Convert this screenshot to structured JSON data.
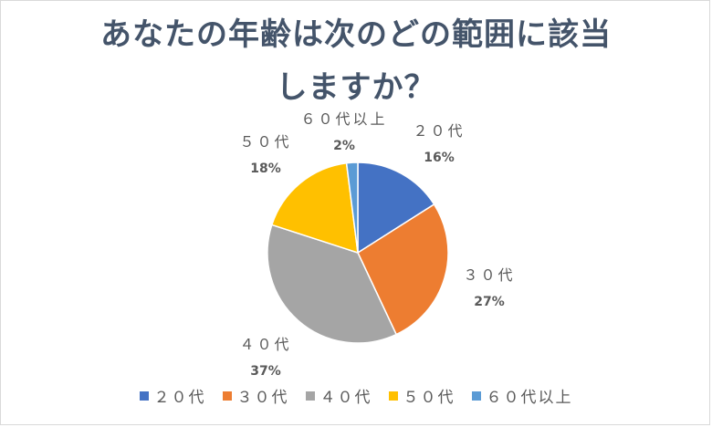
{
  "chart_data": {
    "type": "pie",
    "title_lines": [
      "あなたの年齢は次のどの範囲に該当",
      "しますか？"
    ],
    "categories": [
      "２０代",
      "３０代",
      "４０代",
      "５０代",
      "６０代以上"
    ],
    "values": [
      16,
      27,
      37,
      18,
      2
    ],
    "value_labels": [
      "16%",
      "27%",
      "37%",
      "18%",
      "2%"
    ],
    "colors": [
      "#4472c4",
      "#ed7d31",
      "#a5a5a5",
      "#ffc000",
      "#5b9bd5"
    ],
    "legend_position": "bottom"
  }
}
